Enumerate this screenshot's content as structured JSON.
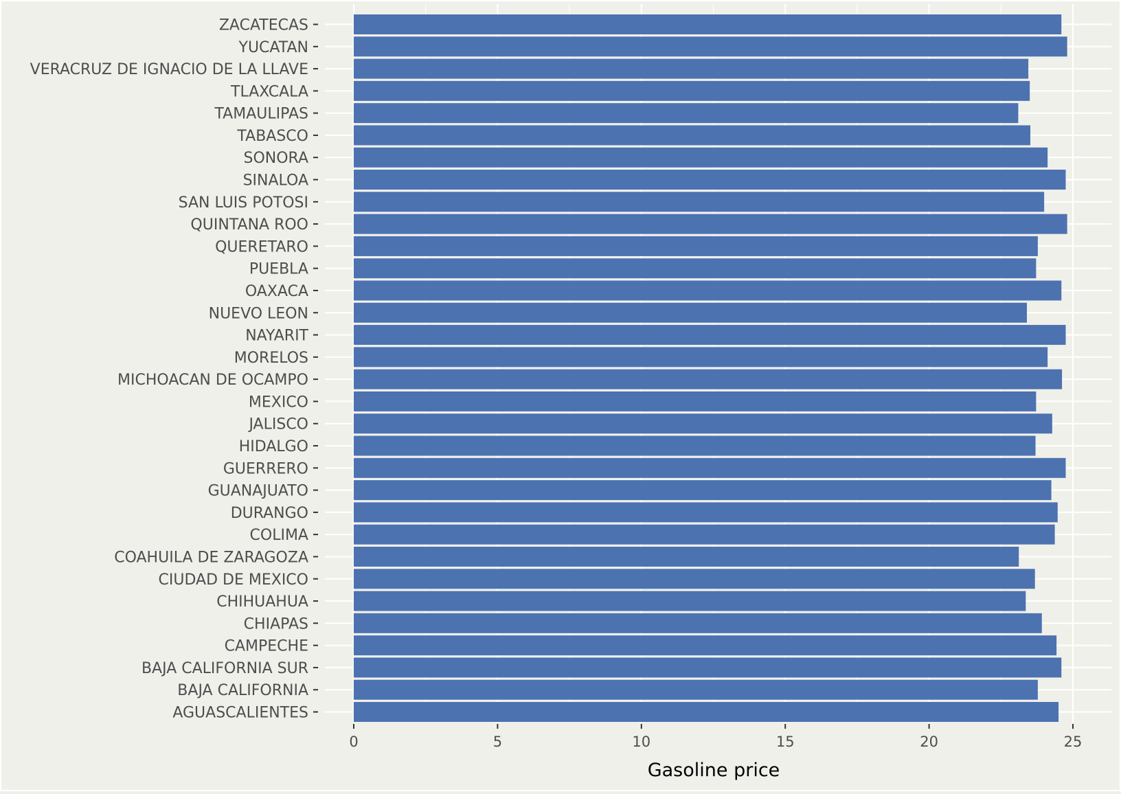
{
  "chart_data": {
    "type": "bar",
    "orientation": "horizontal",
    "title": "",
    "xlabel": "Gasoline price",
    "ylabel": "",
    "xlim": [
      -1.0,
      26.2
    ],
    "xticks": [
      0,
      5,
      10,
      15,
      20,
      25
    ],
    "grid": true,
    "colors": {
      "bar": "#4c72b0",
      "background": "#f0f0eb",
      "grid": "#ffffff",
      "tick_text": "#4d4d4d",
      "axis_title": "#000000"
    },
    "categories": [
      "ZACATECAS",
      "YUCATAN",
      "VERACRUZ DE IGNACIO DE LA LLAVE",
      "TLAXCALA",
      "TAMAULIPAS",
      "TABASCO",
      "SONORA",
      "SINALOA",
      "SAN LUIS POTOSI",
      "QUINTANA ROO",
      "QUERETARO",
      "PUEBLA",
      "OAXACA",
      "NUEVO LEON",
      "NAYARIT",
      "MORELOS",
      "MICHOACAN DE OCAMPO",
      "MEXICO",
      "JALISCO",
      "HIDALGO",
      "GUERRERO",
      "GUANAJUATO",
      "DURANGO",
      "COLIMA",
      "COAHUILA DE ZARAGOZA",
      "CIUDAD DE MEXICO",
      "CHIHUAHUA",
      "CHIAPAS",
      "CAMPECHE",
      "BAJA CALIFORNIA SUR",
      "BAJA CALIFORNIA",
      "AGUASCALIENTES"
    ],
    "values": [
      24.6,
      24.8,
      23.45,
      23.5,
      23.1,
      23.52,
      24.12,
      24.75,
      24.0,
      24.8,
      23.78,
      23.72,
      24.6,
      23.4,
      24.75,
      24.12,
      24.62,
      23.72,
      24.28,
      23.7,
      24.75,
      24.25,
      24.47,
      24.37,
      23.12,
      23.68,
      23.36,
      23.92,
      24.43,
      24.6,
      23.78,
      24.5
    ]
  }
}
